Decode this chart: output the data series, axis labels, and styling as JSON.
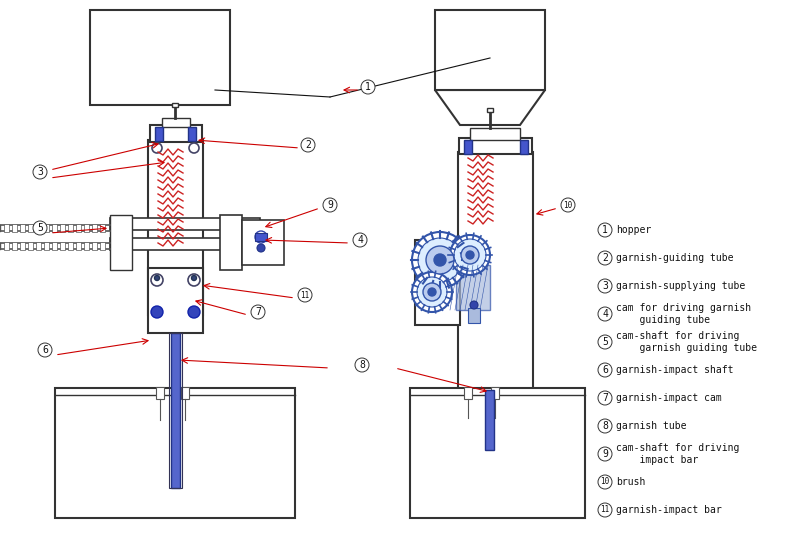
{
  "bg_color": "#ffffff",
  "figsize": [
    8.01,
    5.35
  ],
  "dpi": 100,
  "legend_items": [
    {
      "num": "1",
      "text": "hopper"
    },
    {
      "num": "2",
      "text": "garnish-guiding tube"
    },
    {
      "num": "3",
      "text": "garnish-supplying tube"
    },
    {
      "num": "4",
      "text": "cam for driving garnish\n    guiding tube"
    },
    {
      "num": "5",
      "text": "cam-shaft for driving\n    garnish guiding tube"
    },
    {
      "num": "6",
      "text": "garnish-impact shaft"
    },
    {
      "num": "7",
      "text": "garnish-impact cam"
    },
    {
      "num": "8",
      "text": "garnish tube"
    },
    {
      "num": "9",
      "text": "cam-shaft for driving\n    impact bar"
    },
    {
      "num": "10",
      "text": "brush"
    },
    {
      "num": "11",
      "text": "garnish-impact bar"
    }
  ]
}
